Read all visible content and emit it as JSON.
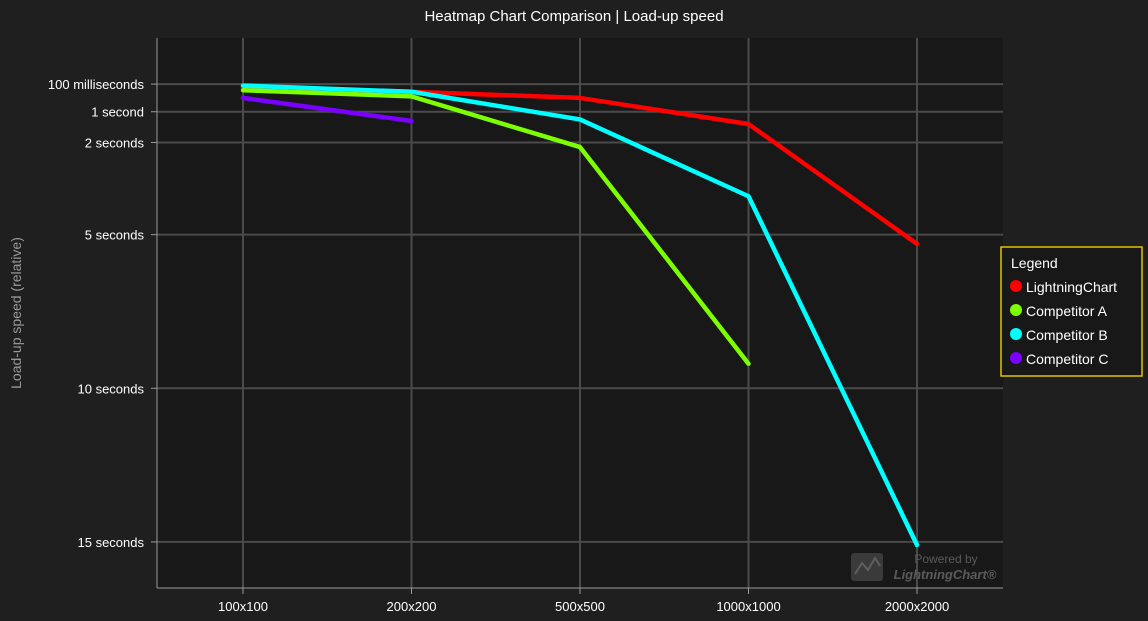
{
  "colors": {
    "background": "#1f1f1f",
    "plot_background": "#181818",
    "grid": "#4a4a4a",
    "axis": "#9a9a9a",
    "legend_border": "#e5c100"
  },
  "watermark": {
    "line1": "Powered by",
    "line2": "LightningChart®",
    "icon": "lightningchart-logo-icon"
  },
  "chart_data": {
    "type": "line",
    "title": "Heatmap Chart Comparison | Load-up speed",
    "xlabel": "",
    "ylabel": "Load-up speed (relative)",
    "categories": [
      "100x100",
      "200x200",
      "500x500",
      "1000x1000",
      "2000x2000"
    ],
    "y_axis_inverted": true,
    "y_ticks": [
      {
        "label": "100 milliseconds",
        "value": 0.1
      },
      {
        "label": "1 second",
        "value": 1
      },
      {
        "label": "2 seconds",
        "value": 2
      },
      {
        "label": "5 seconds",
        "value": 5
      },
      {
        "label": "10 seconds",
        "value": 10
      },
      {
        "label": "15 seconds",
        "value": 15
      }
    ],
    "ylim": [
      -1.4,
      16.5
    ],
    "grid": true,
    "legend": {
      "title": "Legend",
      "placement": "right"
    },
    "series": [
      {
        "name": "LightningChart",
        "color": "#ff0000",
        "values": [
          0.2,
          0.35,
          0.55,
          1.4,
          5.3
        ]
      },
      {
        "name": "Competitor A",
        "color": "#7cff00",
        "values": [
          0.3,
          0.5,
          2.15,
          9.2,
          null
        ]
      },
      {
        "name": "Competitor B",
        "color": "#00ffff",
        "values": [
          0.15,
          0.35,
          1.25,
          3.75,
          15.1
        ]
      },
      {
        "name": "Competitor C",
        "color": "#7a00ff",
        "values": [
          0.55,
          1.3,
          null,
          null,
          null
        ]
      }
    ]
  }
}
